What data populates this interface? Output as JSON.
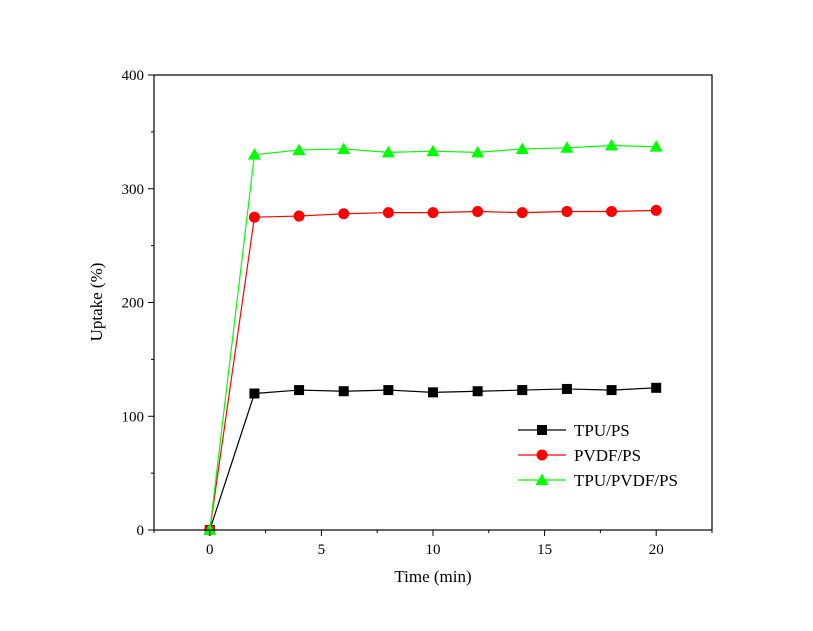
{
  "chart_data": {
    "type": "line",
    "title": "",
    "xlabel": "Time (min)",
    "ylabel": "Uptake (%)",
    "xlim": [
      -2.5,
      22.5
    ],
    "ylim": [
      0,
      400
    ],
    "x_ticks": [
      0,
      5,
      10,
      15,
      20
    ],
    "y_ticks": [
      0,
      100,
      200,
      300,
      400
    ],
    "x_tick_labels": [
      "0",
      "5",
      "10",
      "15",
      "20"
    ],
    "y_tick_labels": [
      "0",
      "100",
      "200",
      "300",
      "400"
    ],
    "grid": false,
    "legend_position": "bottom-right",
    "x": [
      0,
      2,
      4,
      6,
      8,
      10,
      12,
      14,
      16,
      18,
      20
    ],
    "series": [
      {
        "name": "TPU/PS",
        "color": "#000000",
        "marker": "square",
        "values": [
          0,
          120,
          123,
          122,
          123,
          121,
          122,
          123,
          124,
          123,
          125
        ]
      },
      {
        "name": "PVDF/PS",
        "color": "#ff0000",
        "marker": "circle",
        "values": [
          0,
          275,
          276,
          278,
          279,
          279,
          280,
          279,
          280,
          280,
          281
        ]
      },
      {
        "name": "TPU/PVDF/PS",
        "color": "#00ff00",
        "marker": "triangle",
        "values": [
          0,
          330,
          334,
          335,
          332,
          333,
          332,
          335,
          336,
          338,
          337
        ]
      }
    ]
  }
}
